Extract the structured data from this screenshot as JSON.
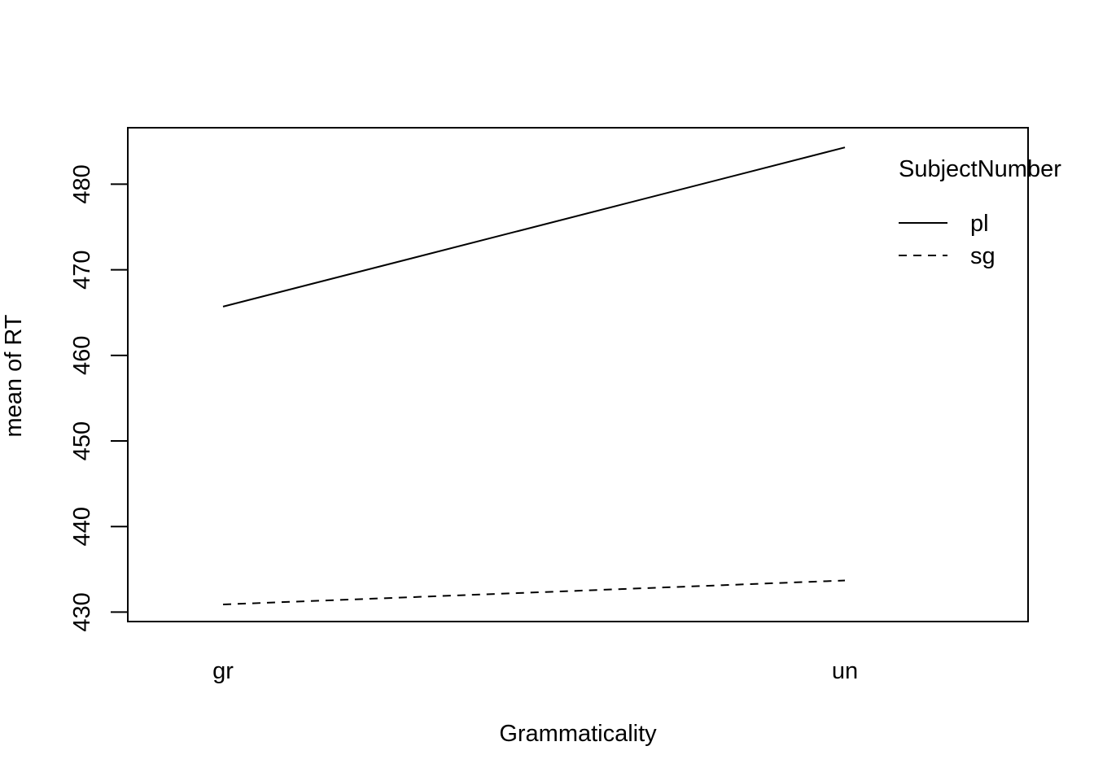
{
  "chart_data": {
    "type": "line",
    "xlabel": "Grammaticality",
    "ylabel": "mean of  RT",
    "categories": [
      "gr",
      "un"
    ],
    "yticks": [
      430,
      440,
      450,
      460,
      470,
      480
    ],
    "ylim": [
      428.9,
      486.6
    ],
    "legend": {
      "title": "SubjectNumber",
      "placement": "top-right"
    },
    "series": [
      {
        "name": "pl",
        "values": [
          465.7,
          484.3
        ],
        "line_style": "solid"
      },
      {
        "name": "sg",
        "values": [
          430.9,
          433.7
        ],
        "line_style": "dashed"
      }
    ],
    "colors": {
      "line": "#000000",
      "background": "#ffffff"
    },
    "grid": false
  }
}
